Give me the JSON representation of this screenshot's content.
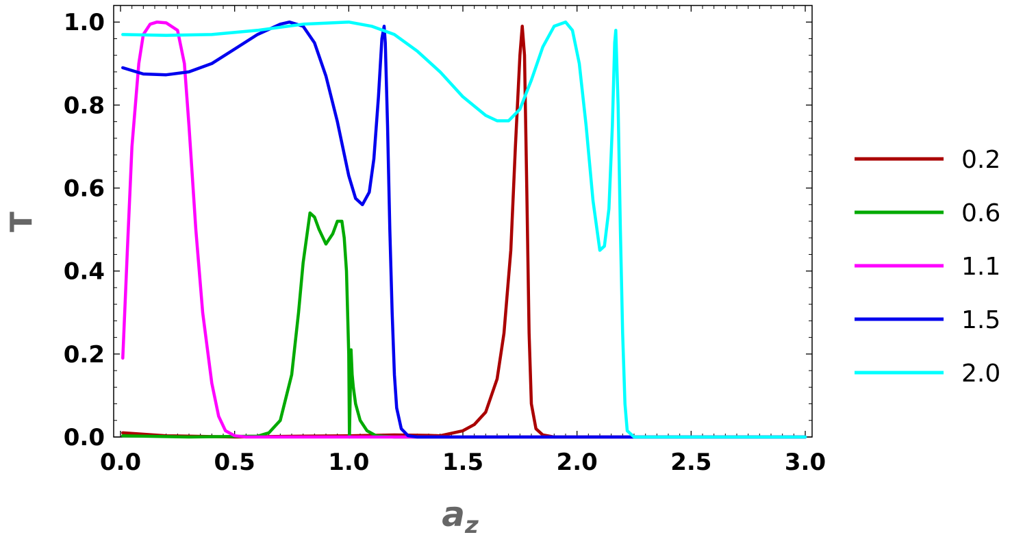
{
  "chart_data": {
    "type": "line",
    "title": "",
    "xlabel": "a",
    "xlabel_subscript": "z",
    "ylabel": "T",
    "xlim": [
      -0.03,
      3.03
    ],
    "ylim": [
      0,
      1.04
    ],
    "xticks": [
      0.0,
      0.5,
      1.0,
      1.5,
      2.0,
      2.5,
      3.0
    ],
    "xtick_labels": [
      "0.0",
      "0.5",
      "1.0",
      "1.5",
      "2.0",
      "2.5",
      "3.0"
    ],
    "yticks": [
      0.0,
      0.2,
      0.4,
      0.6,
      0.8,
      1.0
    ],
    "ytick_labels": [
      "0.0",
      "0.2",
      "0.4",
      "0.6",
      "0.8",
      "1.0"
    ],
    "grid": false,
    "legend_position": "right",
    "series": [
      {
        "name": "0.2",
        "color": "#aa0000",
        "x": [
          0.01,
          0.2,
          0.5,
          0.8,
          1.0,
          1.2,
          1.35,
          1.4,
          1.5,
          1.55,
          1.6,
          1.65,
          1.68,
          1.71,
          1.73,
          1.75,
          1.76,
          1.77,
          1.78,
          1.79,
          1.8,
          1.82,
          1.85,
          1.9,
          2.2,
          3.0
        ],
        "y": [
          0.01,
          0.003,
          0.0,
          0.002,
          0.003,
          0.005,
          0.004,
          0.003,
          0.015,
          0.03,
          0.06,
          0.14,
          0.25,
          0.45,
          0.7,
          0.92,
          0.99,
          0.92,
          0.6,
          0.25,
          0.08,
          0.02,
          0.005,
          0.0,
          0.0,
          0.0
        ]
      },
      {
        "name": "0.6",
        "color": "#00aa00",
        "x": [
          0.01,
          0.3,
          0.6,
          0.65,
          0.7,
          0.75,
          0.78,
          0.8,
          0.83,
          0.85,
          0.87,
          0.9,
          0.93,
          0.95,
          0.97,
          0.98,
          0.99,
          1.0,
          1.003,
          1.01,
          1.015,
          1.02,
          1.03,
          1.05,
          1.08,
          1.12,
          1.2,
          1.5,
          3.0
        ],
        "y": [
          0.003,
          0.0,
          0.002,
          0.01,
          0.04,
          0.15,
          0.3,
          0.42,
          0.54,
          0.53,
          0.5,
          0.465,
          0.49,
          0.52,
          0.52,
          0.48,
          0.4,
          0.2,
          0.0,
          0.21,
          0.15,
          0.12,
          0.08,
          0.04,
          0.015,
          0.003,
          0.0,
          0.0,
          0.0
        ]
      },
      {
        "name": "1.1",
        "color": "#ff00ff",
        "x": [
          0.01,
          0.03,
          0.05,
          0.08,
          0.1,
          0.13,
          0.16,
          0.2,
          0.25,
          0.28,
          0.3,
          0.33,
          0.36,
          0.4,
          0.43,
          0.46,
          0.5,
          0.55,
          0.6,
          1.0,
          3.0
        ],
        "y": [
          0.19,
          0.45,
          0.7,
          0.9,
          0.97,
          0.995,
          1.0,
          0.998,
          0.98,
          0.9,
          0.75,
          0.5,
          0.3,
          0.13,
          0.05,
          0.015,
          0.003,
          0.0,
          0.0,
          0.0,
          0.0
        ]
      },
      {
        "name": "1.5",
        "color": "#0000ee",
        "x": [
          0.01,
          0.1,
          0.2,
          0.3,
          0.4,
          0.5,
          0.6,
          0.7,
          0.74,
          0.8,
          0.85,
          0.9,
          0.95,
          1.0,
          1.03,
          1.06,
          1.09,
          1.11,
          1.13,
          1.145,
          1.155,
          1.16,
          1.17,
          1.18,
          1.19,
          1.2,
          1.21,
          1.23,
          1.26,
          1.3,
          1.5,
          3.0
        ],
        "y": [
          0.89,
          0.875,
          0.873,
          0.88,
          0.9,
          0.935,
          0.97,
          0.995,
          1.0,
          0.99,
          0.95,
          0.87,
          0.76,
          0.63,
          0.575,
          0.56,
          0.59,
          0.67,
          0.82,
          0.96,
          0.99,
          0.95,
          0.75,
          0.5,
          0.3,
          0.15,
          0.07,
          0.02,
          0.003,
          0.0,
          0.0,
          0.0
        ]
      },
      {
        "name": "2.0",
        "color": "#00ffff",
        "x": [
          0.01,
          0.2,
          0.4,
          0.6,
          0.8,
          1.0,
          1.1,
          1.2,
          1.3,
          1.4,
          1.5,
          1.6,
          1.65,
          1.7,
          1.75,
          1.8,
          1.85,
          1.9,
          1.95,
          1.98,
          2.01,
          2.04,
          2.07,
          2.1,
          2.12,
          2.14,
          2.155,
          2.165,
          2.17,
          2.18,
          2.19,
          2.2,
          2.21,
          2.22,
          2.25,
          3.0
        ],
        "y": [
          0.97,
          0.968,
          0.97,
          0.98,
          0.995,
          1.0,
          0.99,
          0.97,
          0.93,
          0.88,
          0.82,
          0.775,
          0.762,
          0.762,
          0.79,
          0.86,
          0.94,
          0.99,
          1.0,
          0.98,
          0.9,
          0.75,
          0.57,
          0.45,
          0.46,
          0.55,
          0.75,
          0.95,
          0.98,
          0.8,
          0.5,
          0.25,
          0.08,
          0.015,
          0.0,
          0.0
        ]
      }
    ]
  }
}
